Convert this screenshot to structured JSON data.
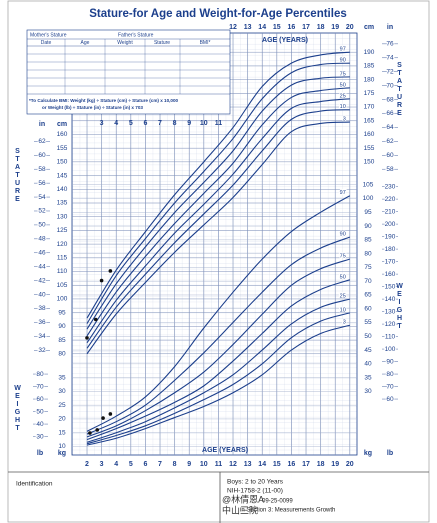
{
  "chart_data": {
    "type": "line",
    "title": "Stature-for Age and Weight-for-Age Percentiles",
    "x_label": "AGE (YEARS)",
    "y_label": "STATURE",
    "y2_label": "WEIGHT",
    "y_unit": "cm",
    "y_alt_unit": "in",
    "y2_unit": "kg",
    "y2_alt_unit": "lb",
    "x": [
      2,
      4,
      6,
      8,
      10,
      12,
      14,
      16,
      18,
      20
    ],
    "xlim": [
      2,
      20
    ],
    "xticks": [
      2,
      3,
      4,
      5,
      6,
      7,
      8,
      9,
      10,
      11,
      12,
      13,
      14,
      15,
      16,
      17,
      18,
      19,
      20
    ],
    "ylim": [
      77,
      197
    ],
    "yticks": [
      80,
      85,
      90,
      95,
      100,
      105,
      110,
      115,
      120,
      125,
      130,
      135,
      140,
      145,
      150,
      155,
      160,
      165,
      170,
      175,
      180,
      185,
      190
    ],
    "yticks_alt": [
      {
        "value": 81.28,
        "label": "32"
      },
      {
        "value": 86.36,
        "label": "34"
      },
      {
        "value": 91.44,
        "label": "36"
      },
      {
        "value": 96.52,
        "label": "38"
      },
      {
        "value": 101.6,
        "label": "40"
      },
      {
        "value": 106.68,
        "label": "42"
      },
      {
        "value": 111.76,
        "label": "44"
      },
      {
        "value": 116.84,
        "label": "46"
      },
      {
        "value": 121.92,
        "label": "48"
      },
      {
        "value": 127,
        "label": "50"
      },
      {
        "value": 132.08,
        "label": "52"
      },
      {
        "value": 137.16,
        "label": "54"
      },
      {
        "value": 142.24,
        "label": "56"
      },
      {
        "value": 147.32,
        "label": "58"
      },
      {
        "value": 152.4,
        "label": "60"
      },
      {
        "value": 157.48,
        "label": "62"
      },
      {
        "value": 162.56,
        "label": "64"
      },
      {
        "value": 167.64,
        "label": "66"
      },
      {
        "value": 172.72,
        "label": "68"
      },
      {
        "value": 177.8,
        "label": "70"
      },
      {
        "value": 182.88,
        "label": "72"
      },
      {
        "value": 187.96,
        "label": "74"
      },
      {
        "value": 193.04,
        "label": "76"
      }
    ],
    "y2lim": [
      8,
      106
    ],
    "y2ticks": [
      10,
      15,
      20,
      25,
      30,
      35,
      40,
      45,
      50,
      55,
      60,
      65,
      70,
      75,
      80,
      85,
      90,
      95,
      100,
      105
    ],
    "y2ticks_alt": [
      {
        "value": 13.61,
        "label": "30"
      },
      {
        "value": 18.14,
        "label": "40"
      },
      {
        "value": 22.68,
        "label": "50"
      },
      {
        "value": 27.22,
        "label": "60"
      },
      {
        "value": 31.75,
        "label": "70"
      },
      {
        "value": 36.29,
        "label": "80"
      },
      {
        "value": 40.82,
        "label": "90"
      },
      {
        "value": 45.36,
        "label": "100"
      },
      {
        "value": 49.9,
        "label": "110"
      },
      {
        "value": 54.43,
        "label": "120"
      },
      {
        "value": 58.97,
        "label": "130"
      },
      {
        "value": 63.5,
        "label": "140"
      },
      {
        "value": 68.04,
        "label": "150"
      },
      {
        "value": 72.57,
        "label": "160"
      },
      {
        "value": 77.11,
        "label": "170"
      },
      {
        "value": 81.65,
        "label": "180"
      },
      {
        "value": 86.18,
        "label": "190"
      },
      {
        "value": 90.72,
        "label": "200"
      },
      {
        "value": 95.25,
        "label": "210"
      },
      {
        "value": 99.79,
        "label": "220"
      },
      {
        "value": 104.33,
        "label": "230"
      }
    ],
    "grid": true,
    "series": [
      {
        "name": "97",
        "color": "#1c3f8c",
        "values": [
          93,
          110.5,
          124.5,
          138,
          150,
          162.5,
          177.5,
          186,
          189,
          190
        ]
      },
      {
        "name": "90",
        "color": "#1c3f8c",
        "values": [
          91,
          108.5,
          122,
          135,
          146.5,
          158.5,
          173,
          182.5,
          185.5,
          186
        ]
      },
      {
        "name": "75",
        "color": "#1c3f8c",
        "values": [
          89,
          105.5,
          119,
          131.5,
          142.5,
          154,
          168.5,
          178,
          180.5,
          181
        ]
      },
      {
        "name": "50",
        "color": "#1c3f8c",
        "values": [
          86.5,
          102.5,
          115.5,
          127.5,
          138.5,
          149.5,
          163.5,
          173.5,
          176,
          177
        ]
      },
      {
        "name": "25",
        "color": "#1c3f8c",
        "values": [
          84,
          99.5,
          112,
          124,
          134.5,
          145.5,
          158.5,
          169.5,
          172,
          173
        ]
      },
      {
        "name": "10",
        "color": "#1c3f8c",
        "values": [
          82,
          97,
          109,
          120.5,
          131,
          141.5,
          154,
          165.5,
          168.5,
          169
        ]
      },
      {
        "name": "3",
        "color": "#1c3f8c",
        "values": [
          80,
          94.5,
          106,
          117,
          127,
          137,
          149,
          161,
          164,
          164.5
        ]
      },
      {
        "name": "97",
        "color": "#1c3f8c",
        "axis": "y2",
        "values": [
          15.5,
          21,
          28,
          39,
          53,
          66,
          78,
          88,
          95,
          101
        ]
      },
      {
        "name": "90",
        "color": "#1c3f8c",
        "axis": "y2",
        "values": [
          14.5,
          19,
          25,
          34,
          44,
          55,
          66,
          76,
          82,
          86
        ]
      },
      {
        "name": "75",
        "color": "#1c3f8c",
        "axis": "y2",
        "values": [
          13.5,
          17.5,
          23,
          29.5,
          37,
          47,
          58,
          68.5,
          74.5,
          78
        ]
      },
      {
        "name": "50",
        "color": "#1c3f8c",
        "axis": "y2",
        "values": [
          12.5,
          16.5,
          21,
          26,
          32,
          41,
          51,
          61,
          67,
          70.5
        ]
      },
      {
        "name": "25",
        "color": "#1c3f8c",
        "axis": "y2",
        "values": [
          11.5,
          15,
          19,
          24,
          29.5,
          36,
          45,
          54.5,
          60.5,
          63.5
        ]
      },
      {
        "name": "10",
        "color": "#1c3f8c",
        "axis": "y2",
        "values": [
          11,
          14,
          17.5,
          22,
          27,
          32.5,
          40,
          49.5,
          55.5,
          58.5
        ]
      },
      {
        "name": "3",
        "color": "#1c3f8c",
        "axis": "y2",
        "values": [
          10.5,
          13,
          16.5,
          20.5,
          24.5,
          29.5,
          36,
          45,
          51,
          54
        ]
      }
    ],
    "measurements": [
      {
        "axis": "y",
        "color": "#111111",
        "x": [
          2,
          2.6,
          3,
          3.6
        ],
        "values": [
          85.8,
          92.5,
          106.7,
          110.2
        ]
      },
      {
        "axis": "y2",
        "color": "#111111",
        "x": [
          2.2,
          2.7,
          3.1,
          3.6
        ],
        "values": [
          14.9,
          16,
          20.3,
          21.8
        ]
      }
    ]
  },
  "form": {
    "mothers_stature": "Mother's Stature",
    "fathers_stature": "Father's Stature",
    "columns": [
      "Date",
      "Age",
      "Weight",
      "Stature",
      "BMI*"
    ],
    "bmi_note": [
      "*To Calculate BMI: Weight (kg) ÷ Stature (cm) ÷ Stature (cm) x 10,000",
      "or Weight (lb) ÷ Stature (in) ÷ Stature (in) x 703"
    ]
  },
  "footer": {
    "identification": "Identification",
    "lines": [
      "Boys: 2 to 20 Years",
      "NIH-1758-2 (11-00)",
      "09-25-0099",
      "in Section 3: Measurements Growth"
    ],
    "watermark": [
      "@林倩恩A",
      "中山三院"
    ]
  }
}
